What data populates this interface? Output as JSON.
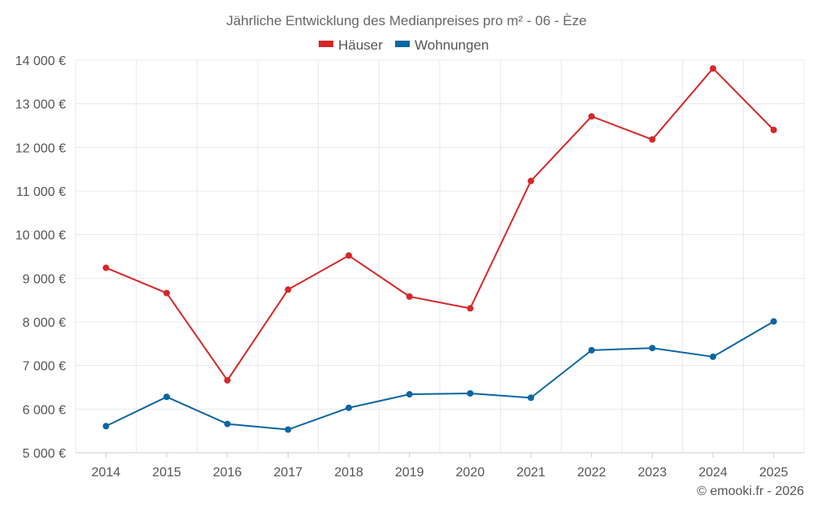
{
  "chart_data": {
    "type": "line",
    "title": "Jährliche Entwicklung des Medianpreises pro m² - 06 - Èze",
    "categories": [
      "2014",
      "2015",
      "2016",
      "2017",
      "2018",
      "2019",
      "2020",
      "2021",
      "2022",
      "2023",
      "2024",
      "2025"
    ],
    "series": [
      {
        "name": "Häuser",
        "color": "#d62728",
        "values": [
          9240,
          8660,
          6660,
          8740,
          9520,
          8580,
          8310,
          11230,
          12710,
          12180,
          13810,
          12400
        ]
      },
      {
        "name": "Wohnungen",
        "color": "#0b66a2",
        "values": [
          5610,
          6280,
          5660,
          5530,
          6030,
          6340,
          6360,
          6260,
          7350,
          7400,
          7200,
          8010
        ]
      }
    ],
    "y_ticks": [
      "5 000 €",
      "6 000 €",
      "7 000 €",
      "8 000 €",
      "9 000 €",
      "10 000 €",
      "11 000 €",
      "12 000 €",
      "13 000 €",
      "14 000 €"
    ],
    "ylim": [
      5000,
      14000
    ],
    "xlabel": "",
    "ylabel": "",
    "grid": true,
    "legend": "top-center"
  },
  "credit": "© emooki.fr - 2026"
}
